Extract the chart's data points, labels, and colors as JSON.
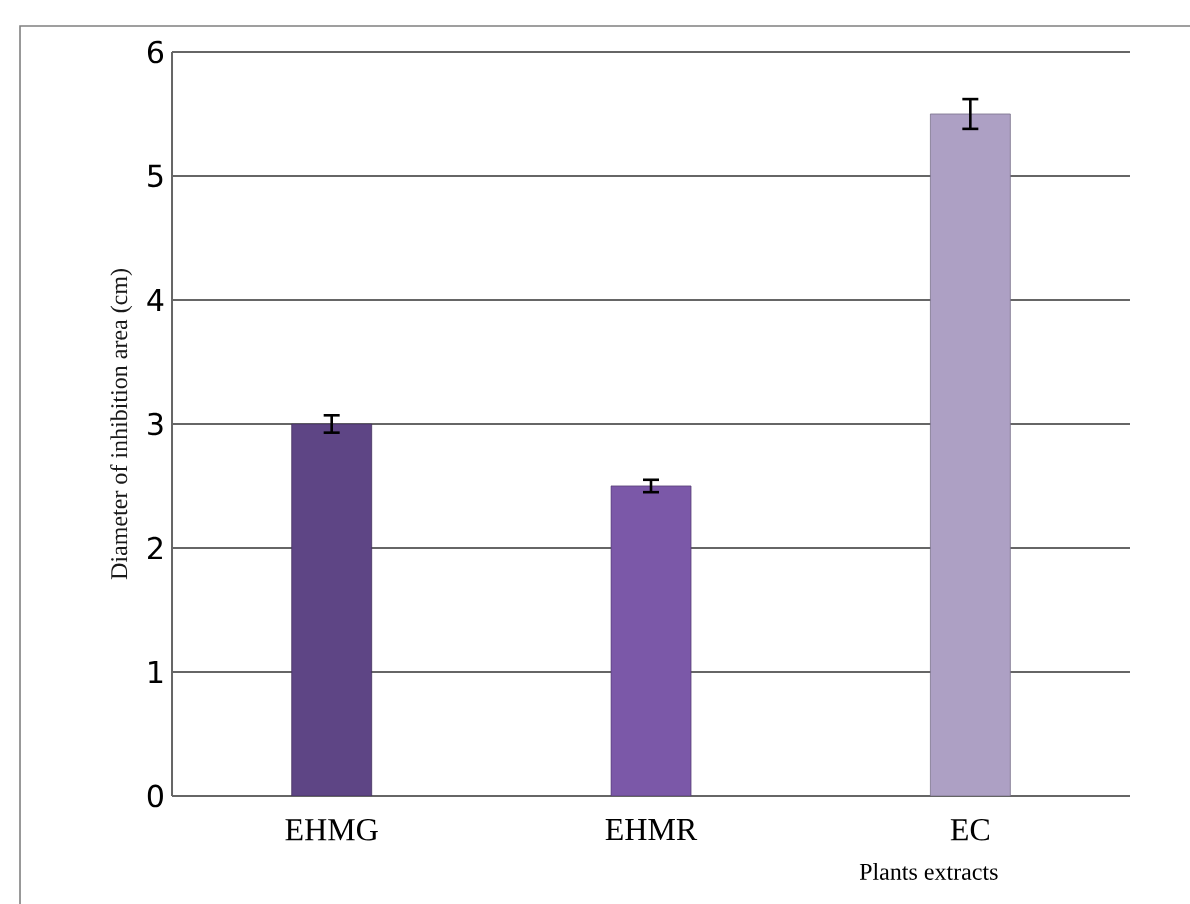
{
  "chart_data": {
    "type": "bar",
    "xlabel": "Plants extracts",
    "ylabel": "Diameter of inhibition area (cm)",
    "categories": [
      "EHMG",
      "EHMR",
      "EC"
    ],
    "values": [
      3,
      2.5,
      5.5
    ],
    "errors": [
      0.07,
      0.05,
      0.12
    ],
    "colors": [
      "#5e4585",
      "#7b58a8",
      "#ada0c4"
    ],
    "ylim": [
      0,
      6
    ],
    "yticks": [
      0,
      1,
      2,
      3,
      4,
      5,
      6
    ],
    "grid": "y"
  }
}
